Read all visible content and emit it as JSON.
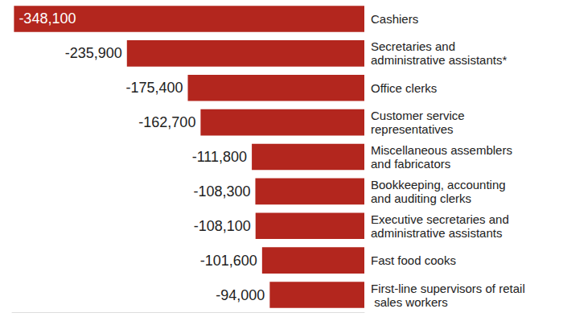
{
  "chart_data": {
    "type": "bar",
    "orientation": "horizontal",
    "categories": [
      "Cashiers",
      "Secretaries and administrative assistants*",
      "Office clerks",
      "Customer service representatives",
      "Miscellaneous assemblers and fabricators",
      "Bookkeeping, accounting and auditing clerks",
      "Executive secretaries and administrative assistants",
      "Fast food cooks",
      "First-line supervisors of retail sales workers"
    ],
    "values": [
      -348100,
      -235900,
      -175400,
      -162700,
      -111800,
      -108300,
      -108100,
      -101600,
      -94000
    ],
    "value_labels": [
      "-348,100",
      "-235,900",
      "-175,400",
      "-162,700",
      "-111,800",
      "-108,300",
      "-108,100",
      "-101,600",
      "-94,000"
    ],
    "color": "#b3261e",
    "xlim": [
      -350000,
      0
    ],
    "data_labels": true,
    "tick_labels": false,
    "grid": false
  }
}
